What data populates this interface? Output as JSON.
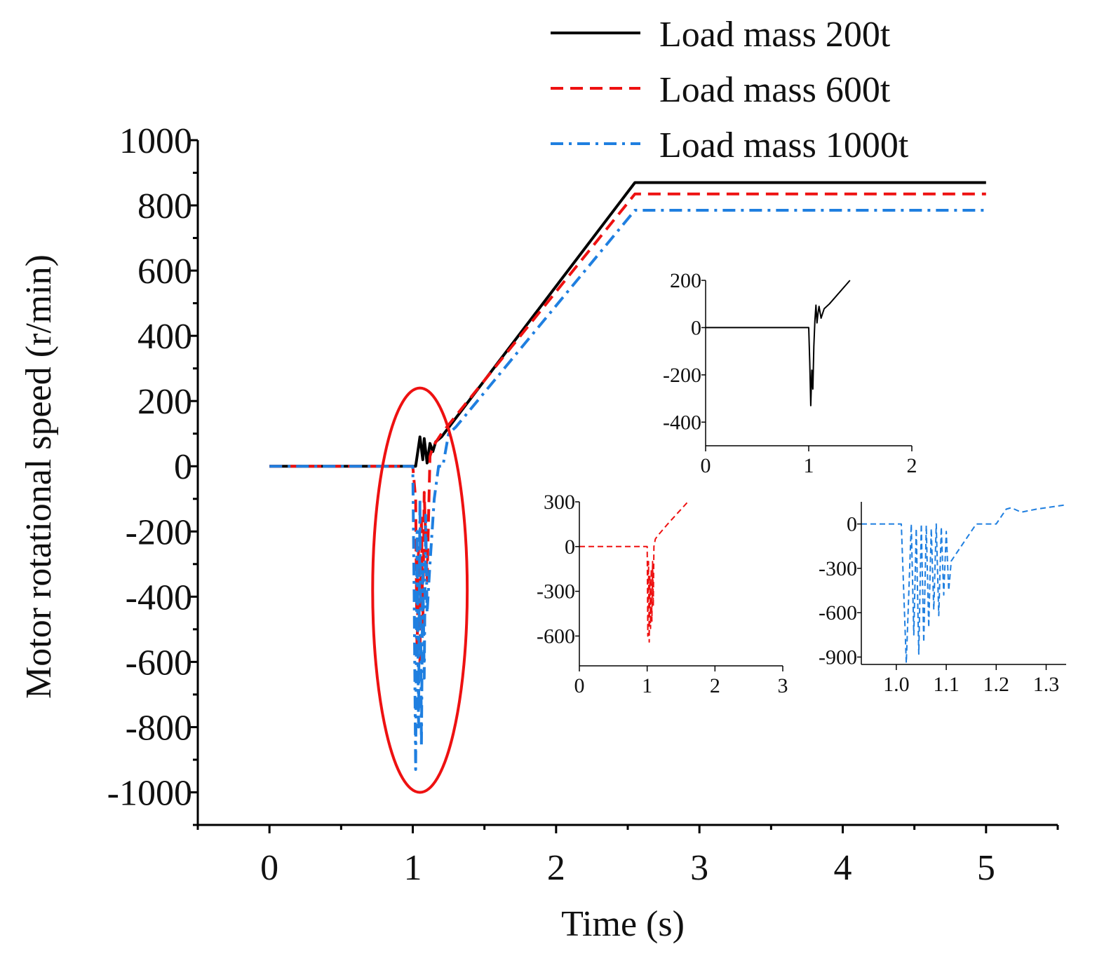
{
  "colors": {
    "load200": "#000000",
    "load600": "#ee1111",
    "load1000": "#1f7fe0",
    "highlight": "#ee1111"
  },
  "legend": [
    {
      "label": "Load mass 200t",
      "style": "solid",
      "color_key": "load200"
    },
    {
      "label": "Load mass 600t",
      "style": "dashed",
      "color_key": "load600"
    },
    {
      "label": "Load mass 1000t",
      "style": "dashdot",
      "color_key": "load1000"
    }
  ],
  "chart_data": [
    {
      "type": "line",
      "title": "",
      "xlabel": "Time (s)",
      "ylabel": "Motor rotational speed (r/min)",
      "xlim": [
        -0.5,
        5.5
      ],
      "ylim": [
        -1100,
        1000
      ],
      "xticks": [
        0,
        1,
        2,
        3,
        4,
        5
      ],
      "xtick_labels": [
        "0",
        "1",
        "2",
        "3",
        "4",
        "5"
      ],
      "yticks": [
        1000,
        800,
        600,
        400,
        200,
        0,
        -200,
        -400,
        -600,
        -800,
        -1000
      ],
      "ytick_labels": [
        "1000",
        "800",
        "600",
        "400",
        "200",
        "0",
        "-200",
        "-400",
        "-600",
        "-800",
        "-1000"
      ],
      "legend_position": "top-right",
      "highlight": {
        "shape": "ellipse",
        "cx": 1.05,
        "cy": -380,
        "rx": 0.33,
        "ry": 620
      },
      "series": [
        {
          "name": "Load mass 200t",
          "color_key": "load200",
          "style": "solid",
          "x": [
            0,
            1.0,
            1.02,
            1.04,
            1.05,
            1.07,
            1.08,
            1.1,
            1.12,
            1.14,
            1.16,
            1.2,
            2.55,
            5.0
          ],
          "y": [
            0,
            0,
            0,
            60,
            90,
            20,
            85,
            10,
            70,
            45,
            75,
            90,
            870,
            870
          ]
        },
        {
          "name": "Load mass 600t",
          "color_key": "load600",
          "style": "dashed",
          "x": [
            0,
            1.0,
            1.02,
            1.03,
            1.04,
            1.05,
            1.06,
            1.07,
            1.08,
            1.1,
            1.12,
            1.14,
            1.2,
            2.55,
            5.0
          ],
          "y": [
            0,
            0,
            -100,
            -580,
            -250,
            -600,
            -150,
            -500,
            -80,
            -350,
            30,
            60,
            100,
            835,
            835
          ]
        },
        {
          "name": "Load mass 1000t",
          "color_key": "load1000",
          "style": "dashdot",
          "x": [
            0,
            1.0,
            1.01,
            1.02,
            1.03,
            1.04,
            1.05,
            1.06,
            1.07,
            1.08,
            1.09,
            1.1,
            1.12,
            1.15,
            1.18,
            1.21,
            1.25,
            1.3,
            2.55,
            5.0
          ],
          "y": [
            0,
            0,
            -400,
            -930,
            -200,
            -800,
            -100,
            -860,
            -300,
            -650,
            -150,
            -450,
            -300,
            -100,
            0,
            0,
            100,
            120,
            785,
            785
          ]
        }
      ]
    },
    {
      "type": "line",
      "name": "inset-200t",
      "xlim": [
        0,
        2
      ],
      "ylim": [
        -500,
        200
      ],
      "xticks": [
        0,
        1,
        2
      ],
      "xtick_labels": [
        "0",
        "1",
        "2"
      ],
      "yticks": [
        200,
        0,
        -200,
        -400
      ],
      "ytick_labels": [
        "200",
        "0",
        "-200",
        "-400"
      ],
      "series": [
        {
          "name": "Load mass 200t",
          "color_key": "load200",
          "style": "solid",
          "x": [
            0,
            1.0,
            1.01,
            1.02,
            1.03,
            1.04,
            1.05,
            1.06,
            1.07,
            1.08,
            1.09,
            1.1,
            1.12,
            1.15,
            1.2,
            1.4
          ],
          "y": [
            0,
            0,
            -150,
            -330,
            -180,
            -260,
            -80,
            30,
            95,
            20,
            60,
            90,
            40,
            80,
            100,
            200
          ]
        }
      ]
    },
    {
      "type": "line",
      "name": "inset-600t",
      "xlim": [
        0,
        3
      ],
      "ylim": [
        -800,
        300
      ],
      "xticks": [
        0,
        1,
        2,
        3
      ],
      "xtick_labels": [
        "0",
        "1",
        "2",
        "3"
      ],
      "yticks": [
        300,
        0,
        -300,
        -600
      ],
      "ytick_labels": [
        "300",
        "0",
        "-300",
        "-600"
      ],
      "series": [
        {
          "name": "Load mass 600t",
          "color_key": "load600",
          "style": "dashed",
          "x": [
            0,
            1.0,
            1.01,
            1.02,
            1.03,
            1.04,
            1.05,
            1.06,
            1.07,
            1.08,
            1.09,
            1.1,
            1.12,
            1.15,
            1.3,
            1.6
          ],
          "y": [
            0,
            0,
            -600,
            -100,
            -640,
            -200,
            -550,
            -150,
            -500,
            -100,
            -400,
            0,
            50,
            70,
            150,
            300
          ]
        }
      ]
    },
    {
      "type": "line",
      "name": "inset-1000t",
      "xlim": [
        0.93,
        1.34
      ],
      "ylim": [
        -950,
        150
      ],
      "xticks": [
        1.0,
        1.1,
        1.2,
        1.3
      ],
      "xtick_labels": [
        "1.0",
        "1.1",
        "1.2",
        "1.3"
      ],
      "yticks": [
        0,
        -300,
        -600,
        -900
      ],
      "ytick_labels": [
        "0",
        "-300",
        "-600",
        "-900"
      ],
      "series": [
        {
          "name": "Load mass 1000t",
          "color_key": "load1000",
          "style": "dashed",
          "x": [
            0.93,
            1.0,
            1.01,
            1.02,
            1.03,
            1.035,
            1.04,
            1.045,
            1.05,
            1.055,
            1.06,
            1.065,
            1.07,
            1.075,
            1.08,
            1.085,
            1.09,
            1.095,
            1.1,
            1.105,
            1.11,
            1.13,
            1.16,
            1.2,
            1.21,
            1.22,
            1.23,
            1.25,
            1.28,
            1.34
          ],
          "y": [
            0,
            0,
            0,
            -940,
            0,
            -750,
            -30,
            -880,
            0,
            -800,
            -10,
            -700,
            -30,
            -580,
            0,
            -620,
            -20,
            -480,
            -50,
            -450,
            -250,
            -150,
            0,
            0,
            50,
            100,
            110,
            80,
            100,
            130
          ]
        }
      ]
    }
  ]
}
